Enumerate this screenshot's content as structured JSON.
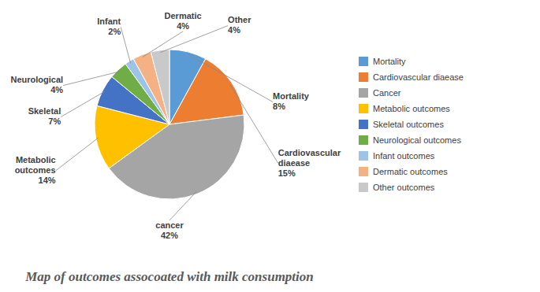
{
  "chart_data": {
    "type": "pie",
    "title": "Map of outcomes assocoated with milk consumption",
    "categories": [
      "Mortality",
      "Cardiovascular diaease",
      "Cancer",
      "Metabolic outcomes",
      "Skeletal outcomes",
      "Neurological outcomes",
      "Infant outcomes",
      "Dermatic outcomes",
      "Other outcomes"
    ],
    "values": [
      8,
      15,
      42,
      14,
      7,
      4,
      2,
      4,
      4
    ],
    "colors": [
      "#5b9bd5",
      "#ed7d31",
      "#a5a5a5",
      "#ffc000",
      "#4472c4",
      "#70ad47",
      "#9dc3e6",
      "#f4b183",
      "#c9c9c9"
    ],
    "data_labels": true,
    "value_labels": [
      "Mortality\n8%",
      "Cardiovascular\ndiaease\n15%",
      "cancer\n42%",
      "Metabolic\noutcomes\n14%",
      "Skeletal\n7%",
      "Neurological\n4%",
      "Infant\n2%",
      "Dermatic\n4%",
      "Other\n4%"
    ],
    "legend": "right"
  }
}
